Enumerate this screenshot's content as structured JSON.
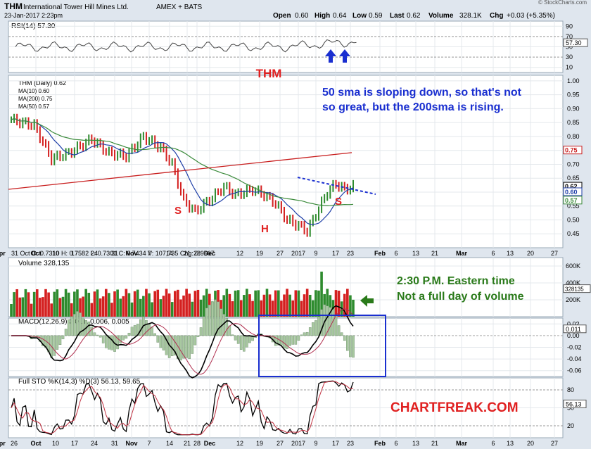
{
  "header": {
    "symbol": "THM",
    "company": "International Tower Hill Mines Ltd.",
    "exchange": "AMEX + BATS",
    "datetime": "23-Jan-2017 2:23pm",
    "watermark": "© StockCharts.com",
    "quote": {
      "open_label": "Open",
      "open": "0.60",
      "high_label": "High",
      "high": "0.64",
      "low_label": "Low",
      "low": "0.59",
      "last_label": "Last",
      "last": "0.62",
      "volume_label": "Volume",
      "volume": "328.1K",
      "chg_label": "Chg",
      "chg": "+0.03 (+5.35%)"
    }
  },
  "annotations": {
    "ticker_label": "THM",
    "sma_comment": "50 sma is sloping down, so that's not so great, but the 200sma is rising.",
    "volume_comment_line1": "2:30 P.M. Eastern time",
    "volume_comment_line2": "Not a full day of volume",
    "brand": "CHARTFREAK.COM",
    "pattern_left_shoulder": "S",
    "pattern_head": "H",
    "pattern_right_shoulder": "S"
  },
  "colors": {
    "panel_bg": "#ffffff",
    "page_bg": "#dfe6ee",
    "up": "#2e8b2e",
    "down": "#d42020",
    "ma10": "#1f3fa8",
    "ma200": "#c81e1e",
    "ma50": "#3a8a3a",
    "annotation_red": "#e02020",
    "annotation_blue": "#1a2fd0",
    "annotation_green": "#2a7a1a"
  },
  "chart_data": [
    {
      "type": "line",
      "panel": "RSI",
      "legend": "RSI(14) 57.30",
      "y_ticks": [
        "90",
        "70",
        "50",
        "30",
        "10"
      ],
      "value_tag": "57.30",
      "ylim": [
        0,
        100
      ]
    },
    {
      "type": "bar",
      "panel": "price",
      "title": "THM (Daily) 0.62",
      "legend": [
        {
          "name": "MA(10) 0.60",
          "color": "#1f3fa8"
        },
        {
          "name": "MA(200) 0.75",
          "color": "#c81e1e"
        },
        {
          "name": "MA(50) 0.57",
          "color": "#3a8a3a"
        }
      ],
      "y_ticks": [
        "1.00",
        "0.95",
        "0.90",
        "0.85",
        "0.80",
        "0.75",
        "0.70",
        "0.65",
        "0.60",
        "0.55",
        "0.50",
        "0.45"
      ],
      "ylim": [
        0.4,
        1.02
      ],
      "value_tags": [
        {
          "label": "0.75",
          "value": 0.75,
          "color": "#c81e1e"
        },
        {
          "label": "0.62",
          "value": 0.62,
          "color": "#000000"
        },
        {
          "label": "0.60",
          "value": 0.6,
          "color": "#1f3fa8"
        },
        {
          "label": "0.57",
          "value": 0.57,
          "color": "#3a8a3a"
        }
      ],
      "ohlc_readout": "31 Oct O: 0.7310  H: 0.7582  L: 0.7301  C: 0.7434  V: 107,735  Chg: 0.9667",
      "x_ticks": [
        "Oct",
        "10",
        "17",
        "24",
        "31",
        "Nov",
        "7",
        "14",
        "21",
        "28",
        "Dec",
        "12",
        "19",
        "27",
        "2017",
        "9",
        "17",
        "23",
        "Feb",
        "6",
        "13",
        "21",
        "Mar",
        "6",
        "13",
        "20",
        "27",
        "Apr"
      ]
    },
    {
      "type": "bar",
      "panel": "volume",
      "legend": "Volume 328,135",
      "y_ticks": [
        "600K",
        "400K",
        "200K"
      ],
      "value_tag": "328135"
    },
    {
      "type": "area",
      "panel": "MACD",
      "legend": "MACD(12,26,9) 0.011, 0.006, 0.005",
      "y_ticks": [
        "0.02",
        "0.00",
        "-0.02",
        "-0.04",
        "-0.06"
      ],
      "value_tag": "0.011"
    },
    {
      "type": "line",
      "panel": "Full STO",
      "legend": "Full STO %K(14,3) %D(3) 56.13, 59.65",
      "y_ticks": [
        "80",
        "50",
        "20"
      ],
      "value_tag": "56.13"
    }
  ],
  "x_axis_bottom": [
    "26",
    "Oct",
    "10",
    "17",
    "24",
    "31",
    "Nov",
    "7",
    "14",
    "21",
    "28",
    "Dec",
    "12",
    "19",
    "27",
    "2017",
    "9",
    "17",
    "23",
    "Feb",
    "6",
    "13",
    "21",
    "Mar",
    "6",
    "13",
    "20",
    "27",
    "Apr"
  ]
}
